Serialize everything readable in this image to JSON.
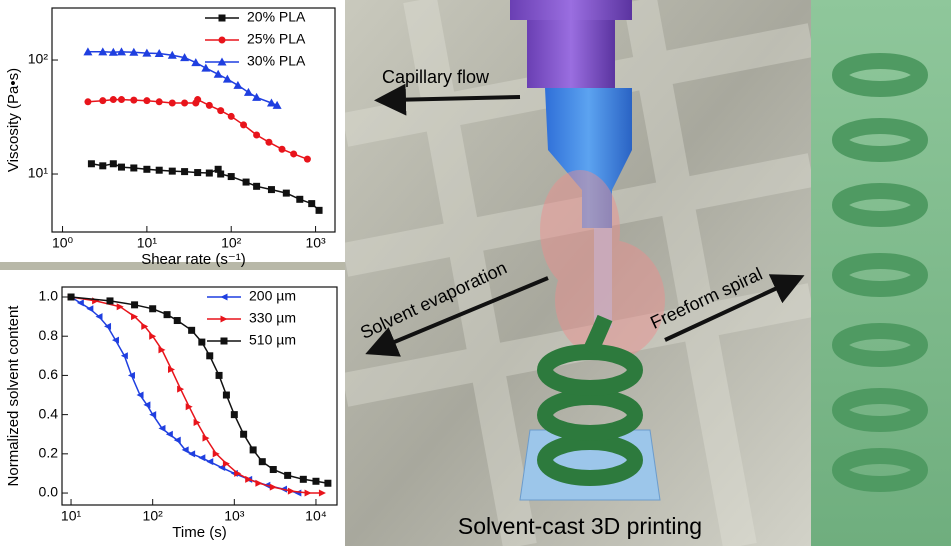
{
  "chart_data": [
    {
      "type": "line",
      "xlabel": "Shear rate (s⁻¹)",
      "ylabel": "Viscosity (Pa•s)",
      "xscale": "log",
      "yscale": "log",
      "legend": "upper right",
      "xlim": [
        0.75,
        1700
      ],
      "ylim": [
        3.1,
        286
      ],
      "xticks": [
        {
          "value": 1,
          "label": "10⁰"
        },
        {
          "value": 10,
          "label": "10¹"
        },
        {
          "value": 100,
          "label": "10²"
        },
        {
          "value": 1000,
          "label": "10³"
        }
      ],
      "yticks": [
        {
          "value": 10,
          "label": "10¹"
        },
        {
          "value": 100,
          "label": "10²"
        }
      ],
      "series": [
        {
          "name": "20% PLA",
          "color": "#111111",
          "marker": "square",
          "x": [
            2.2,
            3,
            4,
            5,
            7,
            10,
            14,
            20,
            28,
            40,
            55,
            70,
            75,
            100,
            150,
            200,
            300,
            450,
            650,
            900,
            1100
          ],
          "values": [
            12.3,
            11.8,
            12.3,
            11.5,
            11.3,
            11,
            10.8,
            10.6,
            10.5,
            10.3,
            10.2,
            11,
            10,
            9.5,
            8.5,
            7.8,
            7.3,
            6.8,
            6,
            5.5,
            4.8
          ]
        },
        {
          "name": "25% PLA",
          "color": "#e8141b",
          "marker": "circle",
          "x": [
            2,
            3,
            4,
            5,
            7,
            10,
            14,
            20,
            28,
            38,
            40,
            55,
            75,
            100,
            140,
            200,
            280,
            400,
            550,
            800
          ],
          "values": [
            43,
            44,
            45,
            45,
            44.5,
            44,
            43,
            42,
            42,
            42,
            45,
            40,
            36,
            32,
            27,
            22,
            19,
            16.5,
            15,
            13.5
          ]
        },
        {
          "name": "30% PLA",
          "color": "#1f3fe0",
          "marker": "triangle",
          "x": [
            2,
            3,
            4,
            5,
            7,
            10,
            14,
            20,
            28,
            38,
            50,
            70,
            90,
            120,
            160,
            200,
            300,
            350
          ],
          "values": [
            118,
            118,
            117,
            118,
            117,
            115,
            114,
            110,
            105,
            95,
            85,
            75,
            68,
            60,
            52,
            47,
            42,
            40
          ]
        }
      ]
    },
    {
      "type": "line",
      "xlabel": "Time (s)",
      "ylabel": "Normalized solvent content",
      "xscale": "log",
      "legend": "upper right",
      "xlim": [
        7.75,
        18100
      ],
      "ylim": [
        -0.061,
        1.051
      ],
      "xticks": [
        {
          "value": 10,
          "label": "10¹"
        },
        {
          "value": 100,
          "label": "10²"
        },
        {
          "value": 1000,
          "label": "10³"
        },
        {
          "value": 10000,
          "label": "10⁴"
        }
      ],
      "yticks": [
        {
          "value": 0,
          "label": "0.0"
        },
        0.2,
        0.4,
        0.6,
        0.8,
        {
          "value": 1,
          "label": "1.0"
        }
      ],
      "series": [
        {
          "name": "200 µm",
          "color": "#1f3fe0",
          "marker": "triangle-left",
          "x": [
            10,
            13,
            17,
            22,
            28,
            35,
            45,
            55,
            70,
            85,
            100,
            130,
            160,
            200,
            250,
            300,
            400,
            500,
            700,
            1000,
            1500,
            2500,
            4000,
            6000
          ],
          "values": [
            1,
            0.97,
            0.94,
            0.9,
            0.85,
            0.78,
            0.7,
            0.6,
            0.5,
            0.45,
            0.4,
            0.33,
            0.3,
            0.27,
            0.22,
            0.2,
            0.18,
            0.16,
            0.13,
            0.1,
            0.07,
            0.04,
            0.02,
            0
          ]
        },
        {
          "name": "330 µm",
          "color": "#e8141b",
          "marker": "triangle-right",
          "x": [
            10,
            20,
            40,
            60,
            80,
            100,
            130,
            170,
            220,
            280,
            350,
            450,
            600,
            800,
            1100,
            1500,
            2000,
            3000,
            5000,
            8000,
            12000
          ],
          "values": [
            1,
            0.98,
            0.95,
            0.9,
            0.85,
            0.8,
            0.73,
            0.63,
            0.53,
            0.44,
            0.36,
            0.28,
            0.2,
            0.15,
            0.1,
            0.07,
            0.05,
            0.03,
            0.01,
            0,
            0
          ]
        },
        {
          "name": "510 µm",
          "color": "#111111",
          "marker": "square",
          "x": [
            10,
            30,
            60,
            100,
            150,
            200,
            300,
            400,
            500,
            650,
            800,
            1000,
            1300,
            1700,
            2200,
            3000,
            4500,
            7000,
            10000,
            14000
          ],
          "values": [
            1,
            0.98,
            0.96,
            0.94,
            0.91,
            0.88,
            0.83,
            0.77,
            0.7,
            0.6,
            0.5,
            0.4,
            0.3,
            0.22,
            0.16,
            0.12,
            0.09,
            0.07,
            0.06,
            0.05
          ]
        }
      ]
    }
  ],
  "illustration": {
    "capillary": "Capillary flow",
    "evaporation": "Solvent evaporation",
    "spiral": "Freeform spiral",
    "caption": "Solvent-cast 3D printing"
  }
}
